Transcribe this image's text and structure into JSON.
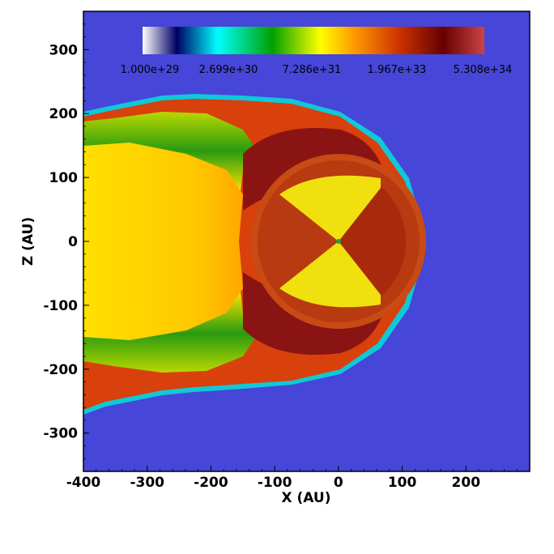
{
  "chart_data": {
    "type": "heatmap",
    "title": "",
    "xlabel": "X (AU)",
    "ylabel": "Z (AU)",
    "xlim": [
      -400,
      300
    ],
    "ylim": [
      -360,
      360
    ],
    "x_ticks": [
      "-400",
      "-300",
      "-200",
      "-100",
      "0",
      "100",
      "200"
    ],
    "x_tick_values": [
      -400,
      -300,
      -200,
      -100,
      0,
      100,
      200
    ],
    "y_ticks": [
      "300",
      "200",
      "100",
      "0",
      "-100",
      "-200",
      "-300"
    ],
    "y_tick_values": [
      300,
      200,
      100,
      0,
      -100,
      -200,
      -300
    ],
    "colorbar": {
      "scale": "log",
      "labels": [
        "1.000e+29",
        "2.699e+30",
        "7.286e+31",
        "1.967e+33",
        "5.308e+34"
      ],
      "colors": [
        "#ffffff",
        "#000066",
        "#00ffff",
        "#00a000",
        "#ffff00",
        "#ff9900",
        "#cc3300",
        "#660000",
        "#cc4444"
      ]
    },
    "colors": {
      "background_field": "#4646d8",
      "outer_sheath": "#d23c0a",
      "inner_sheath": "#8c1212",
      "termination_shock_region": "#c34814",
      "wind_cone": "#f0e40c",
      "tail": "#ffd000",
      "tail_edge": "#0a8a0a"
    }
  }
}
